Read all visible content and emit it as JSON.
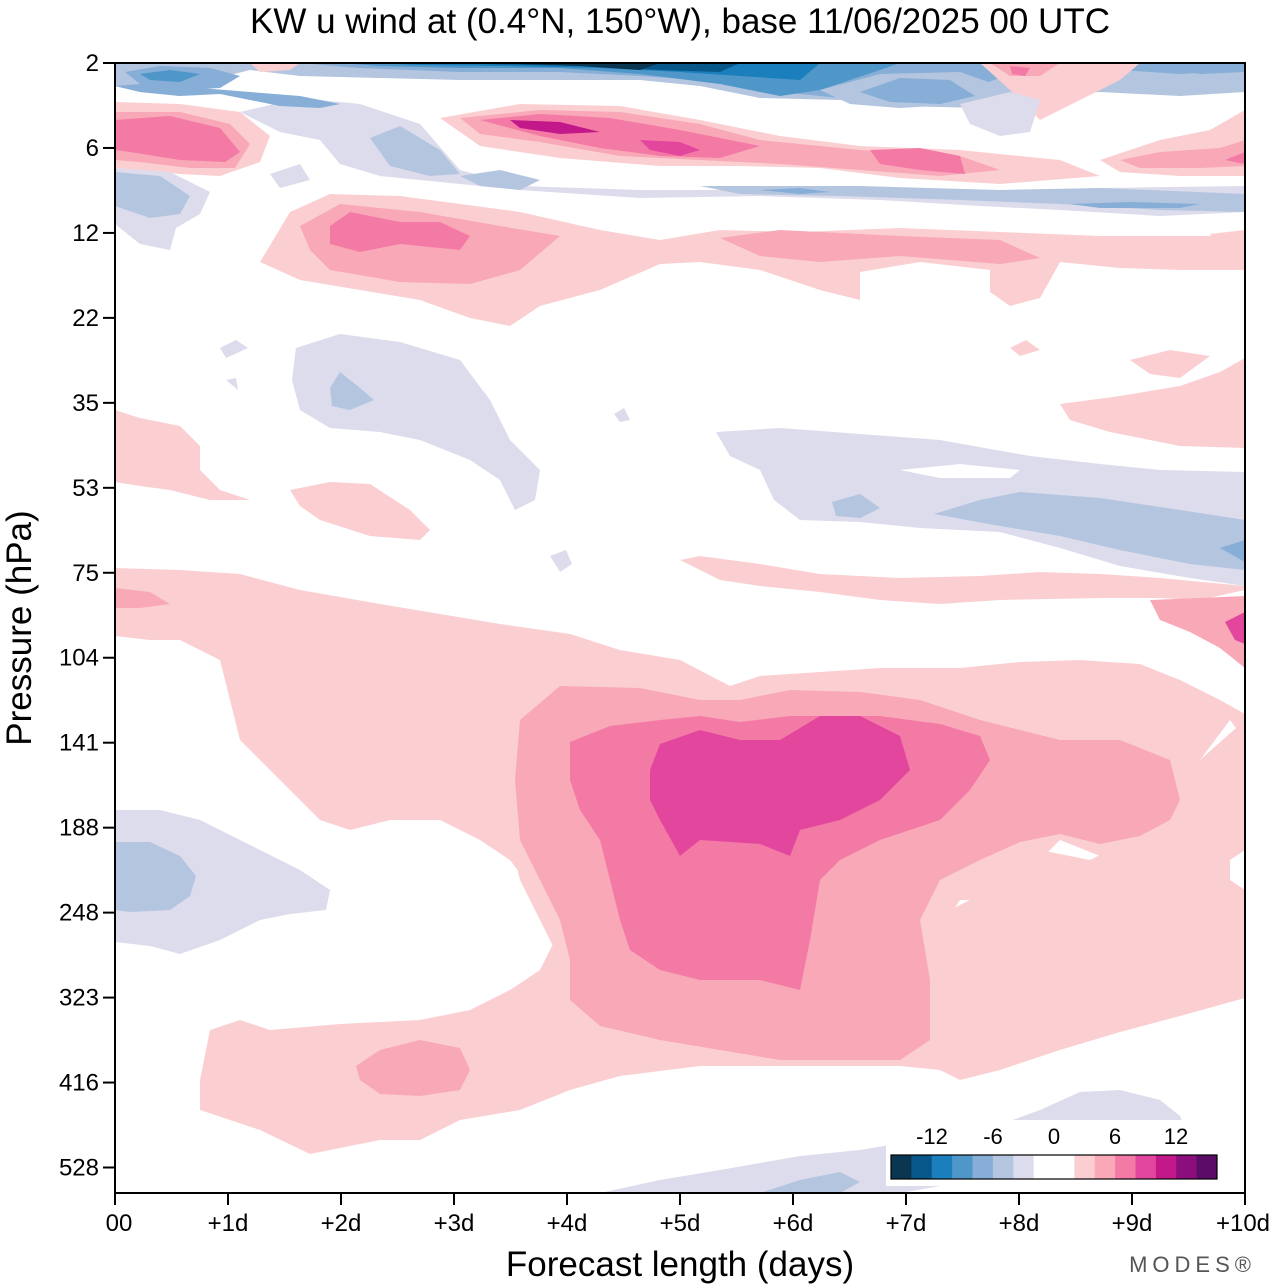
{
  "chart_data": {
    "type": "contour",
    "title": "KW u wind at (0.4°N, 150°W),  base 11/06/2025  00 UTC",
    "xlabel": "Forecast length (days)",
    "ylabel": "Pressure (hPa)",
    "x_ticks": [
      "00",
      "+1d",
      "+2d",
      "+3d",
      "+4d",
      "+5d",
      "+6d",
      "+7d",
      "+8d",
      "+9d",
      "+10d"
    ],
    "y_ticks": [
      "2",
      "6",
      "12",
      "22",
      "35",
      "53",
      "75",
      "104",
      "141",
      "188",
      "248",
      "323",
      "416",
      "528"
    ],
    "xlim_days": [
      0,
      10
    ],
    "colorbar": {
      "tick_labels": [
        "-12",
        "-6",
        "0",
        "6",
        "12"
      ],
      "colors": [
        "#0a3652",
        "#07578a",
        "#1a7fbc",
        "#4f97c9",
        "#86aed6",
        "#b4c5e0",
        "#dcdcec",
        "#ffffff",
        "#ffffff",
        "#fbcfd1",
        "#f8a8b7",
        "#f47aa6",
        "#e2479d",
        "#c2188a",
        "#8a0e7b",
        "#5a0c67"
      ]
    },
    "regions": [
      {
        "name": "stratosphere-negative-band-top",
        "level": -12,
        "x_days": [
          3,
          6
        ],
        "p_hPa": 2
      },
      {
        "name": "stratosphere-positive-band",
        "level": 12,
        "x_days": [
          3.5,
          5.5
        ],
        "p_hPa": 5
      },
      {
        "name": "stratosphere-positive-12hPa",
        "level": 9,
        "x_days": [
          2,
          3.2
        ],
        "p_hPa": 12
      },
      {
        "name": "upper-tropo-positive-core",
        "level": 12,
        "x_days": [
          4.8,
          7
        ],
        "p_hPa": 160
      },
      {
        "name": "surface-negative-west",
        "level": -3,
        "x_days": [
          0,
          0.8
        ],
        "p_hPa": 220
      },
      {
        "name": "mid-level-positive-416",
        "level": 6,
        "x_days": [
          2.2,
          3.1
        ],
        "p_hPa": 416
      },
      {
        "name": "lower-strat-negative-east",
        "level": -6,
        "x_days": [
          7,
          10
        ],
        "p_hPa": 60
      }
    ]
  },
  "branding": {
    "logo_text": "MODES®"
  }
}
